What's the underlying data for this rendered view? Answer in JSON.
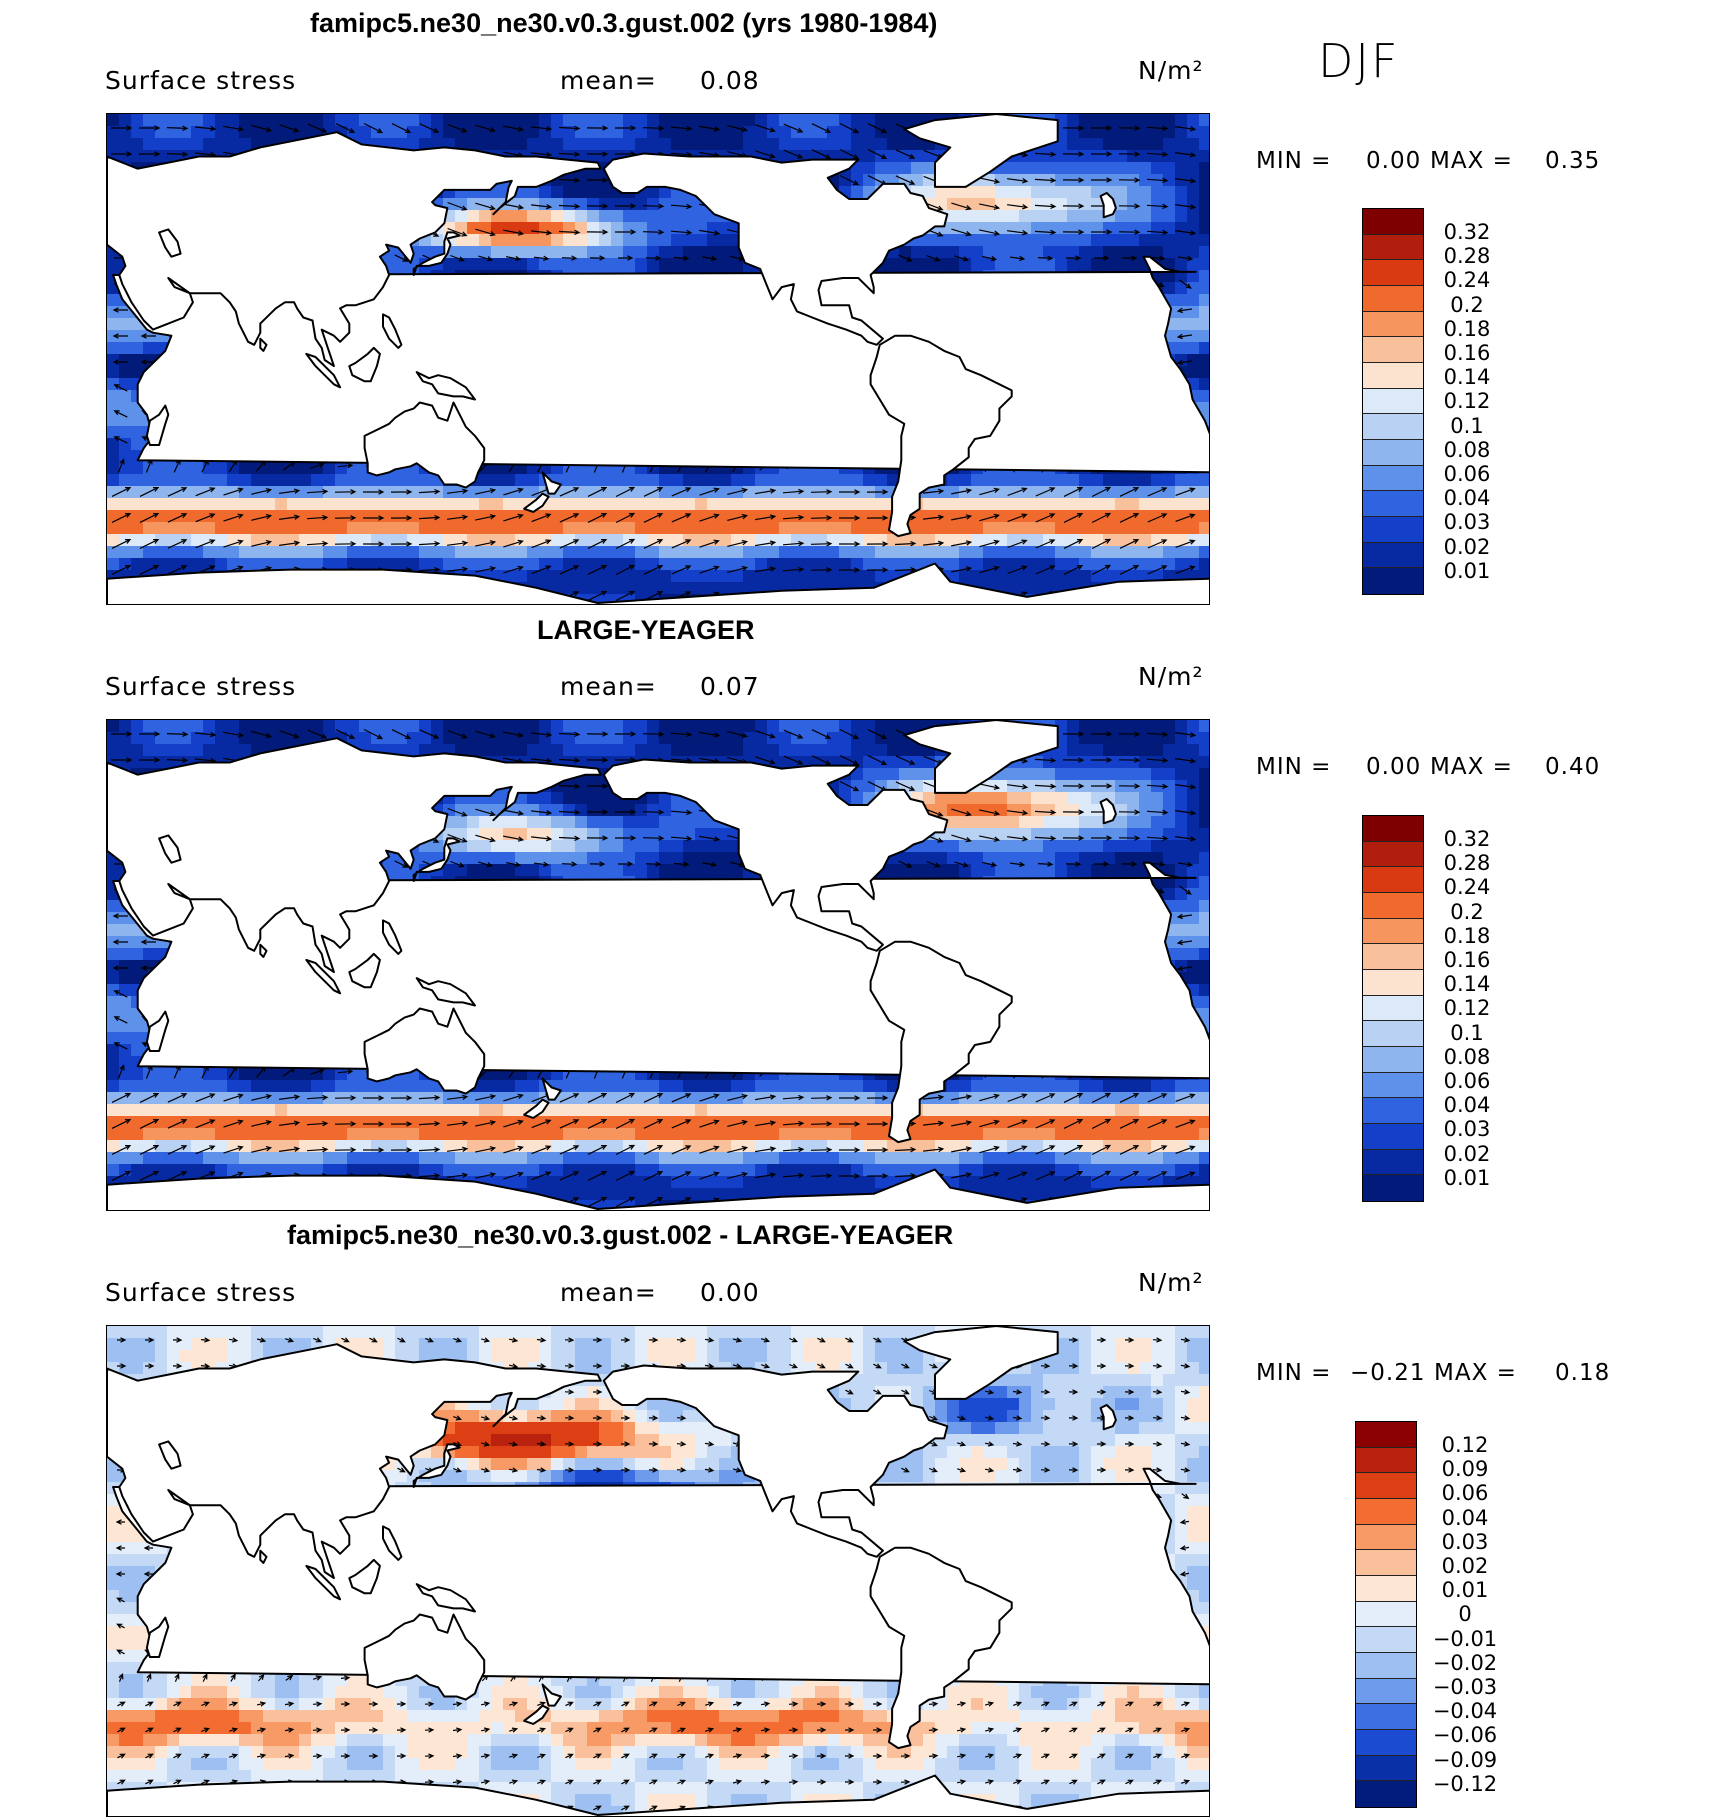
{
  "season": "DJF",
  "panels": [
    {
      "title": "famipc5.ne30_ne30.v0.3.gust.002 (yrs 1980-1984)",
      "variable": "Surface stress",
      "mean_label": "mean=",
      "mean_value": "0.08",
      "units": "N/m²",
      "min_label": "MIN =",
      "min_value": "0.00",
      "max_label": "MAX =",
      "max_value": "0.35",
      "contour_levels": [
        "0.32",
        "0.28",
        "0.24",
        "0.2",
        "0.18",
        "0.16",
        "0.14",
        "0.12",
        "0.1",
        "0.08",
        "0.06",
        "0.04",
        "0.03",
        "0.02",
        "0.01"
      ]
    },
    {
      "title": "LARGE-YEAGER",
      "variable": "Surface stress",
      "mean_label": "mean=",
      "mean_value": "0.07",
      "units": "N/m²",
      "min_label": "MIN =",
      "min_value": "0.00",
      "max_label": "MAX =",
      "max_value": "0.40",
      "contour_levels": [
        "0.32",
        "0.28",
        "0.24",
        "0.2",
        "0.18",
        "0.16",
        "0.14",
        "0.12",
        "0.1",
        "0.08",
        "0.06",
        "0.04",
        "0.03",
        "0.02",
        "0.01"
      ]
    },
    {
      "title": "famipc5.ne30_ne30.v0.3.gust.002 - LARGE-YEAGER",
      "variable": "Surface stress",
      "mean_label": "mean=",
      "mean_value": "0.00",
      "units": "N/m²",
      "min_label": "MIN =",
      "min_value": "−0.21",
      "max_label": "MAX =",
      "max_value": "0.18",
      "contour_levels": [
        "0.12",
        "0.09",
        "0.06",
        "0.04",
        "0.03",
        "0.02",
        "0.01",
        "0",
        "−0.01",
        "−0.02",
        "−0.03",
        "−0.04",
        "−0.06",
        "−0.09",
        "−0.12"
      ]
    }
  ],
  "colors": {
    "abs_scale": [
      "#7f0000",
      "#b21e0d",
      "#d93a12",
      "#f06a2e",
      "#f6955e",
      "#f9c09c",
      "#fbe3d0",
      "#dbe9f8",
      "#b9d2f3",
      "#8fb5ef",
      "#5e91ea",
      "#2f63e0",
      "#143fc9",
      "#072aa3",
      "#021a7a"
    ],
    "diff_scale": [
      "#8b0000",
      "#b8220e",
      "#dd3f14",
      "#f36d32",
      "#f79a66",
      "#fabf9b",
      "#fde6d4",
      "#e4eefa",
      "#c4d9f5",
      "#9dbff1",
      "#6e9bec",
      "#3d6fe3",
      "#1b4bd0",
      "#0a30a8",
      "#021c7c"
    ]
  }
}
